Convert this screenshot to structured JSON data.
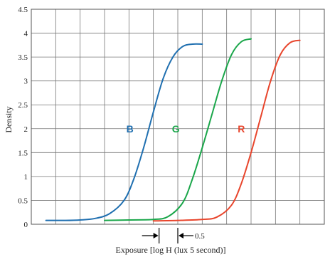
{
  "chart_data": {
    "type": "line",
    "xlabel": "Exposure [log H (lux 5 second)]",
    "ylabel": "Density",
    "xlim": [
      0,
      6
    ],
    "ylim": [
      0,
      4.5
    ],
    "x_gridlines": [
      0,
      0.5,
      1,
      1.5,
      2,
      2.5,
      3,
      3.5,
      4,
      4.5,
      5,
      5.5,
      6
    ],
    "y_ticks": [
      "0",
      "0.5",
      "1",
      "1.5",
      "2",
      "2.5",
      "3",
      "3.5",
      "4",
      "4.5"
    ],
    "y_tick_values": [
      0,
      0.5,
      1,
      1.5,
      2,
      2.5,
      3,
      3.5,
      4,
      4.5
    ],
    "grid": true,
    "annotation": {
      "text": "0.5",
      "from_x": 2.5,
      "to_x": 3.0,
      "meaning": "interval marker"
    },
    "series": [
      {
        "name": "B",
        "color": "#1f6fb0",
        "x": [
          0.3,
          0.7,
          1.0,
          1.3,
          1.6,
          1.9,
          2.1,
          2.3,
          2.5,
          2.7,
          2.9,
          3.1,
          3.3,
          3.5
        ],
        "y": [
          0.08,
          0.08,
          0.09,
          0.12,
          0.22,
          0.5,
          0.95,
          1.6,
          2.35,
          3.05,
          3.5,
          3.72,
          3.77,
          3.77
        ]
      },
      {
        "name": "G",
        "color": "#1aa64a",
        "x": [
          1.5,
          2.0,
          2.5,
          2.8,
          3.1,
          3.3,
          3.5,
          3.7,
          3.9,
          4.1,
          4.3,
          4.5
        ],
        "y": [
          0.08,
          0.09,
          0.1,
          0.16,
          0.45,
          0.95,
          1.6,
          2.3,
          3.0,
          3.55,
          3.82,
          3.88
        ]
      },
      {
        "name": "R",
        "color": "#e8452c",
        "x": [
          2.5,
          3.0,
          3.5,
          3.8,
          4.1,
          4.3,
          4.5,
          4.7,
          4.9,
          5.1,
          5.3,
          5.5
        ],
        "y": [
          0.07,
          0.08,
          0.1,
          0.15,
          0.4,
          0.85,
          1.5,
          2.25,
          3.0,
          3.55,
          3.8,
          3.85
        ]
      }
    ]
  }
}
